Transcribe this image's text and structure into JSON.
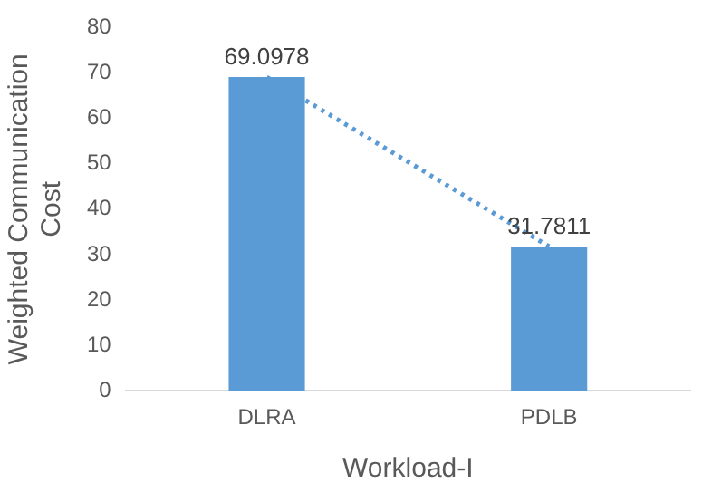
{
  "chart_data": {
    "type": "bar",
    "xlabel": "Workload-I",
    "ylabel": "Weighted Communication Cost",
    "categories": [
      "DLRA",
      "PDLB"
    ],
    "series": [
      {
        "color": "#5b9bd5",
        "values": [
          69.0978,
          31.7811
        ],
        "value_labels": [
          "69.0978",
          "31.7811"
        ]
      },
      {
        "type": "line",
        "color": "#5b9bd5",
        "line_style": "dotted",
        "marker": "none",
        "values": [
          69.0978,
          31.7811
        ]
      }
    ],
    "ylim": [
      0,
      80
    ],
    "yticks": [
      0,
      10,
      20,
      30,
      40,
      50,
      60,
      70,
      80
    ],
    "grid": false,
    "legend": false
  }
}
